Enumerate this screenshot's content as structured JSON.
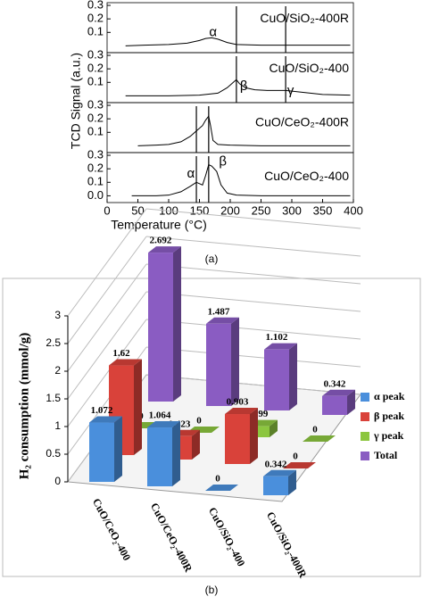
{
  "chart_data": [
    {
      "type": "line",
      "caption": "(a)",
      "xlabel": "Temperature (°C)",
      "ylabel": "TCD Signal (a.u.)",
      "xlim": [
        0,
        400
      ],
      "xticks": [
        0,
        50,
        100,
        150,
        200,
        250,
        300,
        350,
        400
      ],
      "ylim": [
        -0.05,
        0.32
      ],
      "color": "#000000",
      "panels": [
        {
          "label": "CuO/SiO₂-400R",
          "yticks": [
            0.1,
            0.2,
            0.3
          ],
          "annotations": [
            "α"
          ],
          "vlines": [
            210,
            290
          ],
          "x": [
            30,
            60,
            100,
            130,
            150,
            160,
            170,
            180,
            195,
            210,
            250,
            300,
            350,
            395
          ],
          "values": [
            0.0,
            0.005,
            0.01,
            0.02,
            0.04,
            0.055,
            0.06,
            0.05,
            0.025,
            0.01,
            0.005,
            0.005,
            0.005,
            0.005
          ]
        },
        {
          "label": "CuO/SiO₂-400",
          "yticks": [
            0.1,
            0.2,
            0.3
          ],
          "annotations": [
            "β",
            "γ"
          ],
          "vlines": [
            210,
            290
          ],
          "x": [
            30,
            100,
            150,
            180,
            195,
            205,
            210,
            215,
            225,
            240,
            260,
            290,
            320,
            350,
            395
          ],
          "values": [
            0,
            0,
            0.005,
            0.02,
            0.06,
            0.1,
            0.12,
            0.09,
            0.06,
            0.045,
            0.04,
            0.04,
            0.025,
            0.01,
            0.005
          ]
        },
        {
          "label": "CuO/CeO₂-400R",
          "yticks": [
            0.1,
            0.2,
            0.3
          ],
          "annotations": [],
          "vlines": [
            145,
            165
          ],
          "x": [
            50,
            80,
            100,
            120,
            135,
            145,
            155,
            160,
            165,
            168,
            172,
            180,
            200,
            250,
            395
          ],
          "values": [
            0,
            0.005,
            0.01,
            0.03,
            0.07,
            0.11,
            0.15,
            0.19,
            0.22,
            0.15,
            0.04,
            0.01,
            0.005,
            0,
            0
          ]
        },
        {
          "label": "CuO/CeO₂-400",
          "yticks": [
            {
              "value": 0,
              "label": "0.0"
            },
            0.1,
            0.2,
            0.3
          ],
          "annotations": [
            "α",
            "β"
          ],
          "vlines": [
            145,
            165
          ],
          "x": [
            40,
            80,
            100,
            120,
            135,
            145,
            150,
            155,
            160,
            165,
            170,
            178,
            185,
            195,
            210,
            250,
            395
          ],
          "values": [
            0,
            0,
            0.005,
            0.03,
            0.07,
            0.1,
            0.09,
            0.08,
            0.15,
            0.23,
            0.22,
            0.18,
            0.08,
            0.02,
            0.005,
            0,
            0
          ]
        }
      ]
    },
    {
      "type": "bar3d",
      "caption": "(b)",
      "ylabel": "H₂ consumption (mmol/g)",
      "categories": [
        "CuO/CeO₂-400",
        "CuO/CeO₂-400R",
        "CuO/SiO₂-400",
        "CuO/SiO₂-400R"
      ],
      "ylim": [
        0,
        3
      ],
      "yticks": [
        0,
        0.5,
        1,
        1.5,
        2,
        2.5,
        3
      ],
      "grid": true,
      "series": [
        {
          "name": "α peak",
          "color": "#4a8fdc",
          "values": [
            1.072,
            1.064,
            0,
            0.342
          ]
        },
        {
          "name": "β peak",
          "color": "#d9423a",
          "values": [
            1.62,
            0.423,
            0.903,
            0
          ]
        },
        {
          "name": "γ peak",
          "color": "#8cc63f",
          "values": [
            0,
            0,
            0.199,
            0
          ]
        },
        {
          "name": "Total",
          "color": "#8a5cc2",
          "values": [
            2.692,
            1.487,
            1.102,
            0.342
          ]
        }
      ]
    }
  ]
}
